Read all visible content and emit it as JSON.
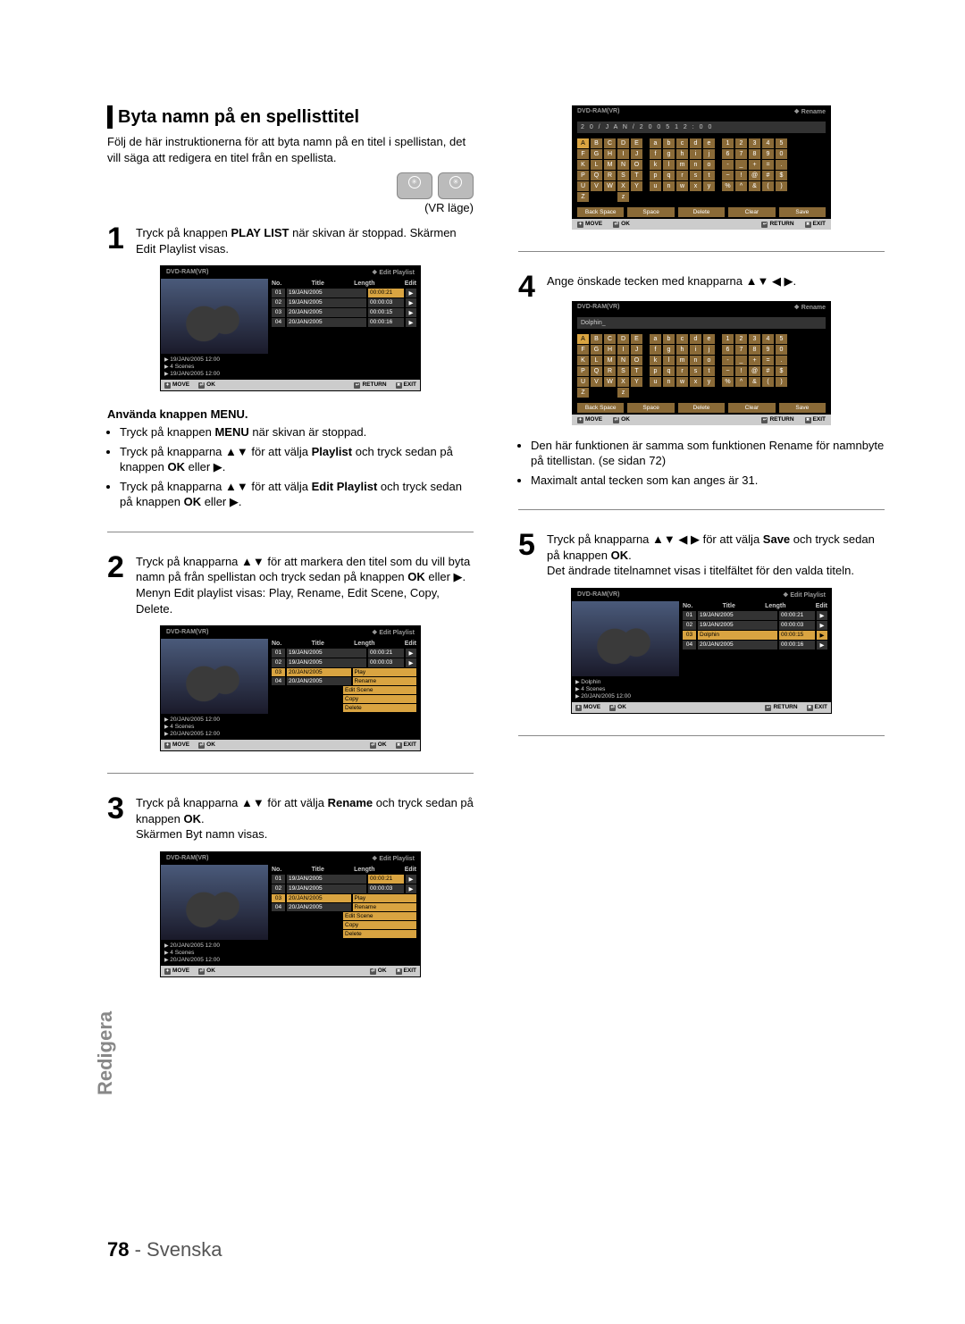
{
  "page": {
    "number": "78",
    "language": "Svenska",
    "side_tab": "Redigera"
  },
  "section": {
    "title": "Byta namn på en spellisttitel",
    "intro": "Följ de här instruktionerna för att byta namn på en titel i spellistan, det vill säga att redigera en titel från en spellista.",
    "mode": "(VR läge)",
    "discs": [
      "DVD-RAM",
      "DVD-RW"
    ]
  },
  "menu_use": {
    "heading": "Använda knappen MENU.",
    "b1a": "Tryck på knappen ",
    "b1b": "MENU",
    "b1c": " när skivan är stoppad.",
    "b2a": "Tryck på knapparna ▲▼ för att välja ",
    "b2b": "Playlist",
    "b2c": " och tryck sedan på knappen ",
    "b2d": "OK",
    "b2e": " eller ▶.",
    "b3a": "Tryck på knapparna ▲▼ för att välja ",
    "b3b": "Edit Playlist",
    "b3c": " och tryck sedan på knappen ",
    "b3d": "OK",
    "b3e": " eller ▶."
  },
  "steps": {
    "s1a": "Tryck på knappen ",
    "s1b": "PLAY LIST",
    "s1c": " när skivan är stoppad. Skärmen Edit Playlist visas.",
    "s2a": "Tryck på knapparna ▲▼ för att markera den titel som du vill byta namn på från spellistan och tryck sedan på knappen ",
    "s2b": "OK",
    "s2c": " eller ▶.",
    "s2d": "Menyn Edit playlist visas: Play, Rename, Edit Scene, Copy, Delete.",
    "s3a": "Tryck på knapparna ▲▼ för att välja ",
    "s3b": "Rename",
    "s3c": " och tryck sedan på knappen ",
    "s3d": "OK",
    "s3e": ".",
    "s3f": "Skärmen Byt namn visas.",
    "s4": "Ange önskade tecken med knapparna ▲▼ ◀ ▶.",
    "s5a": "Tryck på knapparna ▲▼ ◀ ▶ för att välja ",
    "s5b": "Save",
    "s5c": " och tryck sedan på knappen ",
    "s5d": "OK",
    "s5e": ".",
    "s5f": "Det ändrade titelnamnet visas i titelfältet för den valda titeln."
  },
  "notes": {
    "n1": "Den här funktionen är samma som funktionen Rename för namnbyte på titellistan. (se sidan 72)",
    "n2": "Maximalt antal tecken som kan anges är 31."
  },
  "panel_labels": {
    "device": "DVD-RAM(VR)",
    "edit_playlist": "Edit Playlist",
    "rename": "Rename",
    "cols": {
      "no": "No.",
      "title": "Title",
      "length": "Length",
      "edit": "Edit"
    },
    "footer": {
      "move": "MOVE",
      "ok": "OK",
      "return": "RETURN",
      "exit": "EXIT"
    },
    "scenes": "4 Scenes",
    "menu": [
      "Play",
      "Rename",
      "Edit Scene",
      "Copy",
      "Delete"
    ],
    "kb_actions": [
      "Back Space",
      "Space",
      "Delete",
      "Clear",
      "Save"
    ]
  },
  "panel1": {
    "rows": [
      {
        "n": "01",
        "t": "19/JAN/2005",
        "l": "00:00:21",
        "hi_len": true
      },
      {
        "n": "02",
        "t": "19/JAN/2005",
        "l": "00:00:03"
      },
      {
        "n": "03",
        "t": "20/JAN/2005",
        "l": "00:00:15"
      },
      {
        "n": "04",
        "t": "20/JAN/2005",
        "l": "00:00:16"
      }
    ],
    "info": [
      "19/JAN/2005 12:00",
      "4 Scenes",
      "19/JAN/2005 12:00"
    ]
  },
  "panel2": {
    "rows": [
      {
        "n": "01",
        "t": "19/JAN/2005",
        "l": "00:00:21"
      },
      {
        "n": "02",
        "t": "19/JAN/2005",
        "l": "00:00:03"
      },
      {
        "n": "03",
        "t": "20/JAN/2005",
        "l": "Play",
        "menu": true,
        "hi": true
      },
      {
        "n": "04",
        "t": "20/JAN/2005",
        "l": "Rename",
        "menu": true
      }
    ],
    "extra_menu": [
      "Edit Scene",
      "Copy",
      "Delete"
    ],
    "info": [
      "20/JAN/2005 12:00",
      "4 Scenes",
      "20/JAN/2005 12:00"
    ]
  },
  "panel3": {
    "rows": [
      {
        "n": "01",
        "t": "19/JAN/2005",
        "l": "00:00:21",
        "hi_len": true
      },
      {
        "n": "02",
        "t": "19/JAN/2005",
        "l": "00:00:03"
      },
      {
        "n": "03",
        "t": "20/JAN/2005",
        "l": "Play",
        "menu": true
      },
      {
        "n": "04",
        "t": "20/JAN/2005",
        "l": "Rename",
        "menu": true,
        "hi": true
      }
    ],
    "extra_menu": [
      "Edit Scene",
      "Copy",
      "Delete"
    ],
    "info": [
      "20/JAN/2005 12:00",
      "4 Scenes",
      "20/JAN/2005 12:00"
    ]
  },
  "panel5": {
    "rows": [
      {
        "n": "01",
        "t": "19/JAN/2005",
        "l": "00:00:21"
      },
      {
        "n": "02",
        "t": "19/JAN/2005",
        "l": "00:00:03"
      },
      {
        "n": "03",
        "t": "Dolphin",
        "l": "00:00:15",
        "hi": true
      },
      {
        "n": "04",
        "t": "20/JAN/2005",
        "l": "00:00:16"
      }
    ],
    "info": [
      "Dolphin",
      "4 Scenes",
      "20/JAN/2005 12:00"
    ]
  },
  "keyboard": {
    "name1": "2 0  /  J A N  /  2 0 0 5  1 2 : 0 0",
    "name2": "Dolphin_",
    "rows": [
      [
        "A",
        "B",
        "C",
        "D",
        "E",
        "",
        "a",
        "b",
        "c",
        "d",
        "e",
        "",
        "1",
        "2",
        "3",
        "4",
        "5"
      ],
      [
        "F",
        "G",
        "H",
        "I",
        "J",
        "",
        "f",
        "g",
        "h",
        "i",
        "j",
        "",
        "6",
        "7",
        "8",
        "9",
        "0"
      ],
      [
        "K",
        "L",
        "M",
        "N",
        "O",
        "",
        "k",
        "l",
        "m",
        "n",
        "o",
        "",
        "-",
        "_",
        "+",
        "=",
        "."
      ],
      [
        "P",
        "Q",
        "R",
        "S",
        "T",
        "",
        "p",
        "q",
        "r",
        "s",
        "t",
        "",
        "~",
        "!",
        "@",
        "#",
        "$"
      ],
      [
        "U",
        "V",
        "W",
        "X",
        "Y",
        "",
        "u",
        "n",
        "w",
        "x",
        "y",
        "",
        "%",
        "^",
        "&",
        "(",
        ")"
      ],
      [
        "Z",
        "",
        "",
        "",
        "",
        "",
        "z",
        "",
        "",
        "",
        "",
        "",
        "",
        "",
        "",
        "",
        ""
      ]
    ]
  }
}
